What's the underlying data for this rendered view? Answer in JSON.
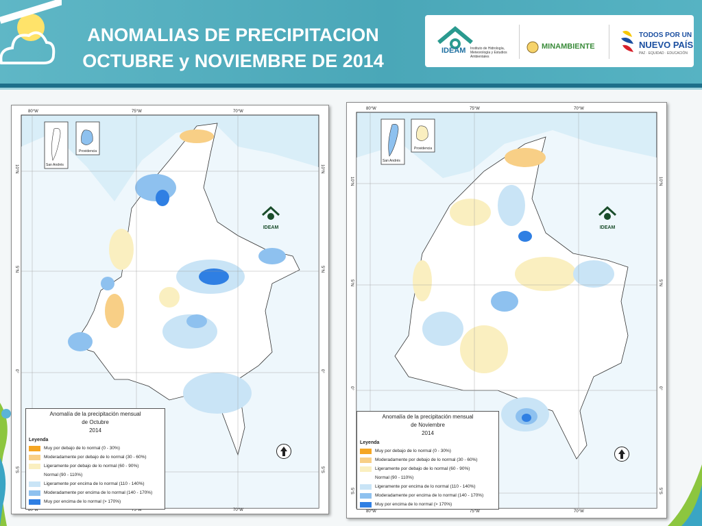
{
  "header": {
    "title_line1": "ANOMALIAS DE PRECIPITACION",
    "title_line2": "OCTUBRE y NOVIEMBRE DE 2014"
  },
  "logos": {
    "ideam": "IDEAM",
    "ideam_sub": "Instituto de Hidrología, Meteorología y Estudios Ambientales",
    "minambiente": "MINAMBIENTE",
    "gov_line1": "TODOS POR UN",
    "gov_line2": "NUEVO PAÍS",
    "gov_line3": "PAZ · EQUIDAD · EDUCACIÓN"
  },
  "colors": {
    "header_bg": "#4aa7b8",
    "very_below": "#f5a623",
    "moderately_below": "#f8cf86",
    "slightly_below": "#faefc0",
    "normal": "#ffffff",
    "slightly_above": "#c9e4f6",
    "moderately_above": "#8ec1ef",
    "very_above": "#2f7fe3",
    "sea": "#d9eef8"
  },
  "coords": {
    "lon_80": "80°W",
    "lon_75": "75°W",
    "lon_70": "70°W",
    "lat_10": "10°N",
    "lat_5": "5°N",
    "lat_0": "0°",
    "lat_5s": "5°S"
  },
  "maps": [
    {
      "inset_a": "San Andrés",
      "inset_b": "Providencia",
      "mark": "IDEAM",
      "legend_title_1": "Anomalía de la precipitación mensual",
      "legend_title_2": "de Octubre",
      "legend_year": "2014",
      "legend_heading": "Leyenda",
      "items": [
        "Muy por debajo de lo normal (0 - 30%)",
        "Moderadamente por debajo de lo normal (30 - 60%)",
        "Ligeramente por debajo de lo normal (60 - 90%)",
        "Normal (90 - 110%)",
        "Ligeramente por encima de lo normal (110 - 140%)",
        "Moderadamente por encima de lo normal (140 - 170%)",
        "Muy por encima de lo normal (> 170%)"
      ]
    },
    {
      "inset_a": "San Andrés",
      "inset_b": "Providencia",
      "mark": "IDEAM",
      "legend_title_1": "Anomalía de la precipitación mensual",
      "legend_title_2": "de Noviembre",
      "legend_year": "2014",
      "legend_heading": "Leyenda",
      "items": [
        "Muy por debajo de lo normal (0 - 30%)",
        "Moderadamente por debajo de lo normal (30 - 60%)",
        "Ligeramente por debajo de lo normal (60 - 90%)",
        "Normal (90 - 110%)",
        "Ligeramente por encima de lo normal (110 - 140%)",
        "Moderadamente por encima de lo normal (140 - 170%)",
        "Muy por encima de lo normal (> 170%)"
      ]
    }
  ]
}
